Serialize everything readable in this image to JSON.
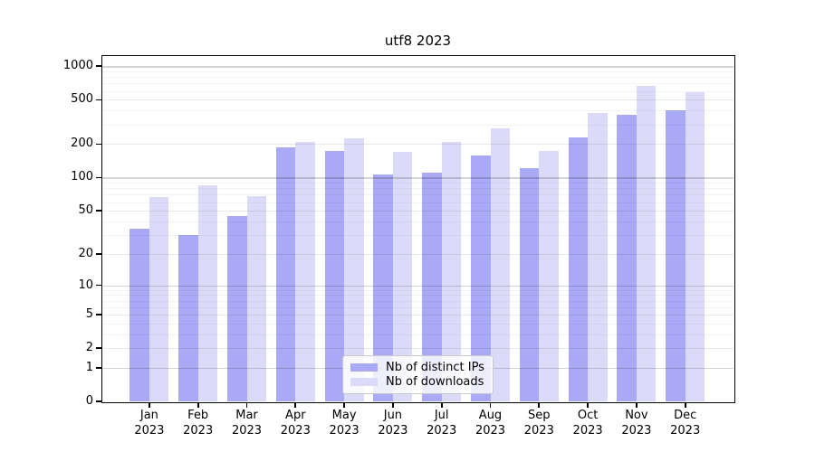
{
  "title": "utf8 2023",
  "legend": {
    "items": [
      {
        "label": "Nb of distinct IPs",
        "color": "#a9a9f5"
      },
      {
        "label": "Nb of downloads",
        "color": "#dbdbf9"
      }
    ]
  },
  "chart_data": {
    "type": "bar",
    "title": "utf8 2023",
    "categories": [
      "Jan",
      "Feb",
      "Mar",
      "Apr",
      "May",
      "Jun",
      "Jul",
      "Aug",
      "Sep",
      "Oct",
      "Nov",
      "Dec"
    ],
    "x_year_sublabel": "2023",
    "series": [
      {
        "name": "Nb of distinct IPs",
        "color": "#a9a9f5",
        "values": [
          34,
          30,
          45,
          187,
          175,
          107,
          110,
          159,
          122,
          228,
          370,
          400
        ]
      },
      {
        "name": "Nb of downloads",
        "color": "#dbdbf9",
        "values": [
          67,
          85,
          68,
          211,
          227,
          171,
          211,
          277,
          175,
          383,
          670,
          590
        ]
      }
    ],
    "yscale": "log10(1+v)",
    "yticks": [
      0,
      1,
      2,
      5,
      10,
      20,
      50,
      100,
      200,
      500,
      1000
    ],
    "ylim": [
      0,
      1218
    ],
    "grid": true,
    "legend_position": "lower center"
  }
}
